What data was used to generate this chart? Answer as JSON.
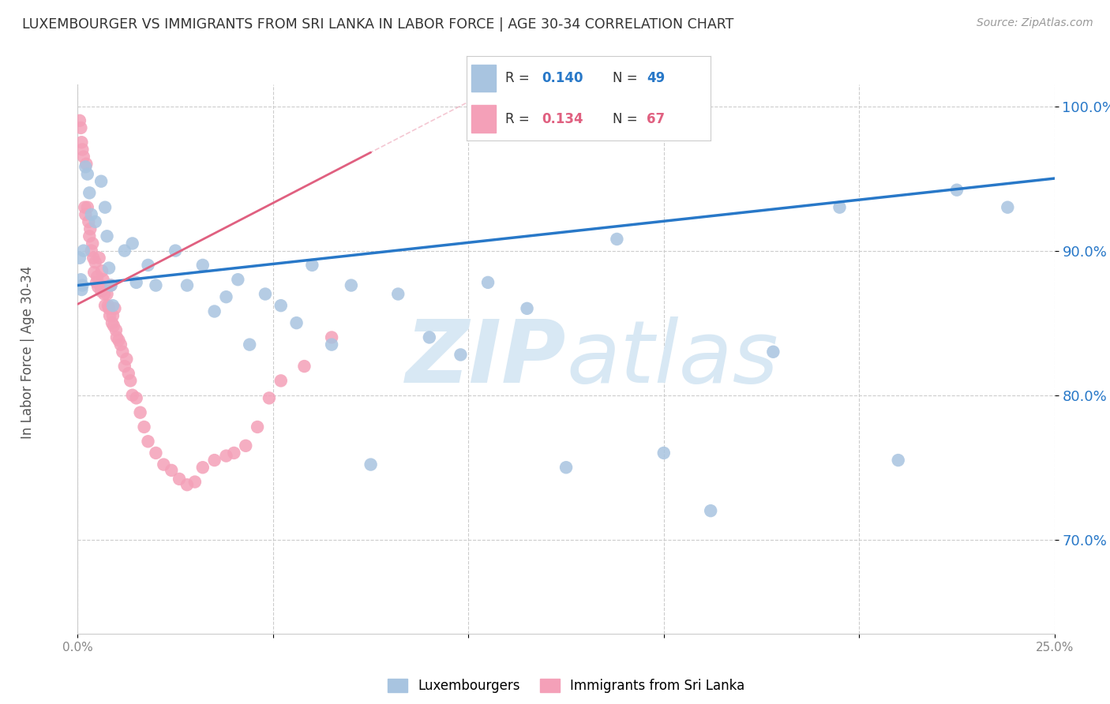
{
  "title": "LUXEMBOURGER VS IMMIGRANTS FROM SRI LANKA IN LABOR FORCE | AGE 30-34 CORRELATION CHART",
  "source": "Source: ZipAtlas.com",
  "ylabel": "In Labor Force | Age 30-34",
  "y_ticks": [
    0.7,
    0.8,
    0.9,
    1.0
  ],
  "y_tick_labels": [
    "70.0%",
    "80.0%",
    "90.0%",
    "100.0%"
  ],
  "x_range": [
    0.0,
    0.25
  ],
  "y_range": [
    0.635,
    1.015
  ],
  "blue_scatter_color": "#a8c4e0",
  "blue_line_color": "#2878c8",
  "pink_scatter_color": "#f4a0b8",
  "pink_line_color": "#e06080",
  "watermark_color": "#d8e8f4",
  "grid_color": "#cccccc",
  "background_color": "#ffffff",
  "legend_blue_r": "0.140",
  "legend_blue_n": "49",
  "legend_pink_r": "0.134",
  "legend_pink_n": "67",
  "blue_line_x0": 0.0,
  "blue_line_x1": 0.25,
  "blue_line_y0": 0.876,
  "blue_line_y1": 0.95,
  "pink_line_x0": 0.0,
  "pink_line_x1": 0.075,
  "pink_line_y0": 0.863,
  "pink_line_y1": 0.968,
  "lux_x": [
    0.0012,
    0.0005,
    0.0008,
    0.0015,
    0.002,
    0.0025,
    0.003,
    0.0035,
    0.0045,
    0.006,
    0.007,
    0.0075,
    0.008,
    0.0085,
    0.009,
    0.001,
    0.012,
    0.014,
    0.015,
    0.018,
    0.02,
    0.025,
    0.028,
    0.032,
    0.035,
    0.038,
    0.041,
    0.044,
    0.048,
    0.052,
    0.056,
    0.06,
    0.065,
    0.07,
    0.075,
    0.082,
    0.09,
    0.098,
    0.105,
    0.115,
    0.125,
    0.138,
    0.15,
    0.162,
    0.178,
    0.195,
    0.21,
    0.225,
    0.238
  ],
  "lux_y": [
    0.876,
    0.895,
    0.88,
    0.9,
    0.958,
    0.953,
    0.94,
    0.925,
    0.92,
    0.948,
    0.93,
    0.91,
    0.888,
    0.876,
    0.862,
    0.873,
    0.9,
    0.905,
    0.878,
    0.89,
    0.876,
    0.9,
    0.876,
    0.89,
    0.858,
    0.868,
    0.88,
    0.835,
    0.87,
    0.862,
    0.85,
    0.89,
    0.835,
    0.876,
    0.752,
    0.87,
    0.84,
    0.828,
    0.878,
    0.86,
    0.75,
    0.908,
    0.76,
    0.72,
    0.83,
    0.93,
    0.755,
    0.942,
    0.93
  ],
  "sri_x": [
    0.0005,
    0.0008,
    0.001,
    0.0012,
    0.0015,
    0.0018,
    0.002,
    0.0022,
    0.0025,
    0.0028,
    0.003,
    0.0032,
    0.0035,
    0.0038,
    0.004,
    0.0042,
    0.0045,
    0.0048,
    0.005,
    0.0052,
    0.0055,
    0.0058,
    0.006,
    0.0062,
    0.0065,
    0.0068,
    0.007,
    0.0072,
    0.0075,
    0.0078,
    0.008,
    0.0082,
    0.0085,
    0.0088,
    0.009,
    0.0092,
    0.0095,
    0.0098,
    0.01,
    0.0105,
    0.011,
    0.0115,
    0.012,
    0.0125,
    0.013,
    0.0135,
    0.014,
    0.015,
    0.016,
    0.017,
    0.018,
    0.02,
    0.022,
    0.024,
    0.026,
    0.028,
    0.03,
    0.032,
    0.035,
    0.038,
    0.04,
    0.043,
    0.046,
    0.049,
    0.052,
    0.058,
    0.065
  ],
  "sri_y": [
    0.99,
    0.985,
    0.975,
    0.97,
    0.965,
    0.93,
    0.925,
    0.96,
    0.93,
    0.92,
    0.91,
    0.915,
    0.9,
    0.905,
    0.895,
    0.885,
    0.892,
    0.878,
    0.882,
    0.875,
    0.895,
    0.876,
    0.872,
    0.886,
    0.88,
    0.87,
    0.862,
    0.875,
    0.87,
    0.862,
    0.86,
    0.855,
    0.876,
    0.85,
    0.855,
    0.848,
    0.86,
    0.845,
    0.84,
    0.838,
    0.835,
    0.83,
    0.82,
    0.825,
    0.815,
    0.81,
    0.8,
    0.798,
    0.788,
    0.778,
    0.768,
    0.76,
    0.752,
    0.748,
    0.742,
    0.738,
    0.74,
    0.75,
    0.755,
    0.758,
    0.76,
    0.765,
    0.778,
    0.798,
    0.81,
    0.82,
    0.84
  ]
}
